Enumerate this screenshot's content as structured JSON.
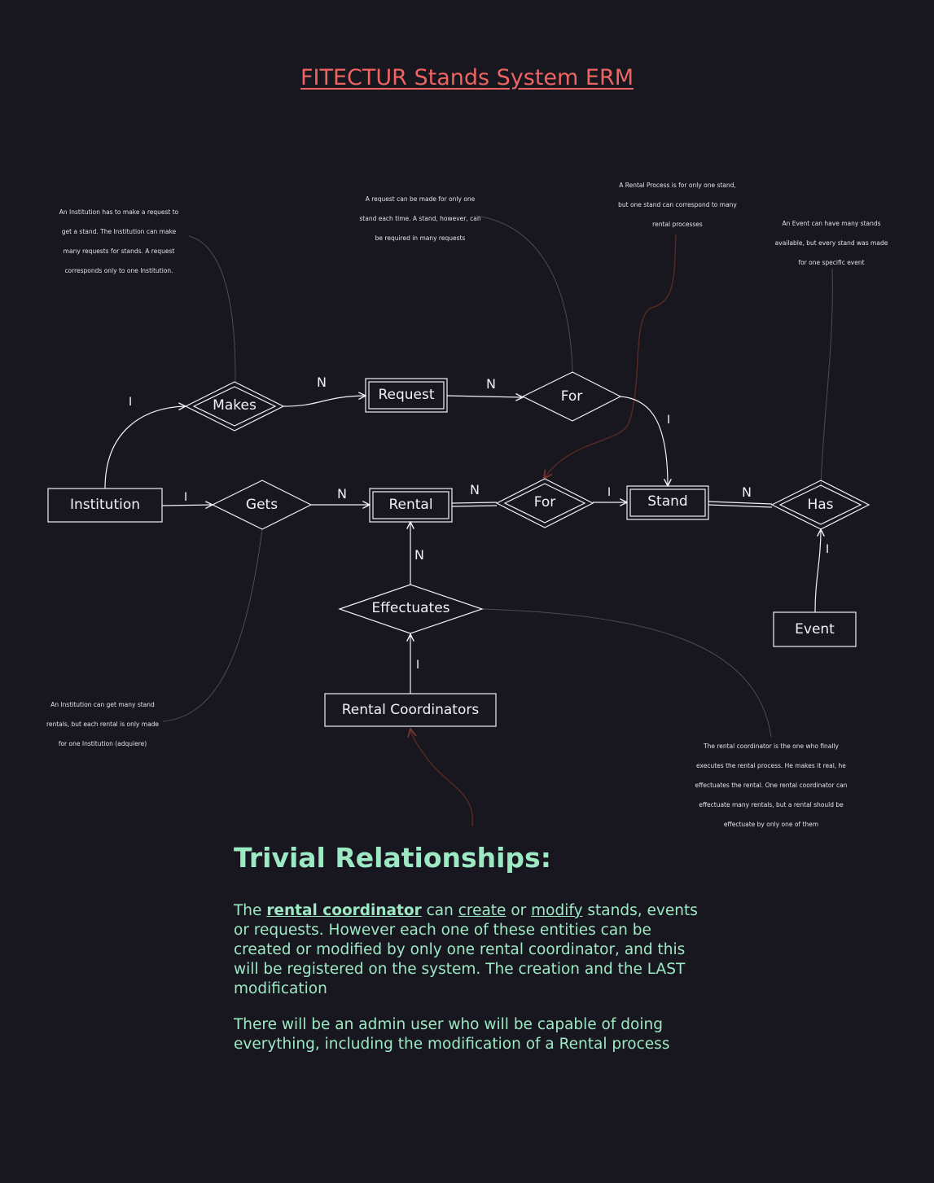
{
  "title": "FITECTUR Stands System ERM",
  "colors": {
    "background": "#18161f",
    "title": "#ee6461",
    "shape_stroke": "#f2f1f6",
    "note_text": "#e3e1ea",
    "connector": "#6a6773",
    "highlight_connector": "#5a2a24",
    "trivial_text": "#9ce9c4"
  },
  "entities": {
    "institution": "Institution",
    "request": "Request",
    "rental": "Rental",
    "stand": "Stand",
    "event": "Event",
    "rental_coordinators": "Rental Coordinators"
  },
  "relationships": {
    "makes": "Makes",
    "for_request": "For",
    "gets": "Gets",
    "for_rental": "For",
    "has": "Has",
    "effectuates": "Effectuates"
  },
  "cardinalities": {
    "institution_makes": "I",
    "makes_request": "N",
    "request_for": "N",
    "for_stand": "I",
    "institution_gets": "I",
    "gets_rental": "N",
    "rental_for": "N",
    "for_stand_2": "I",
    "stand_has": "N",
    "event_has": "I",
    "effectuates_rental": "N",
    "coordinator_effectuates": "I"
  },
  "notes": {
    "makes_note": "An Institution has to make a request to get a stand. The Institution can make many requests for stands. A request corresponds only to one Institution.",
    "request_note": "A request can be made for only one stand each time. A stand, however, can be required in many requests",
    "rental_process_note": "A Rental Process is for only one stand, but one stand can correspond to many rental processes",
    "event_note": "An Event can have many stands available, but every stand was made for one specific event",
    "gets_note": "An Institution can get many stand rentals, but each rental is only made for one Institution (adquiere)",
    "coordinator_note": "The rental coordinator is the one who finally executes the rental process. He makes it real, he effectuates the rental. One rental coordinator can effectuate many rentals, but a rental should be effectuate by only one of them"
  },
  "trivial": {
    "heading": "Trivial Relationships:",
    "p1": {
      "w1": "The",
      "rental_coordinator": "rental coordinator",
      "w2": "can",
      "create": "create",
      "w3": "or",
      "modify": "modify",
      "rest": "stands, events or requests. However each one of these entities can be created or modified by only one rental coordinator, and this will be registered on the system. The creation and the LAST modification"
    },
    "p2": "There will be an admin user who will be capable of doing everything, including the modification of a Rental process"
  }
}
